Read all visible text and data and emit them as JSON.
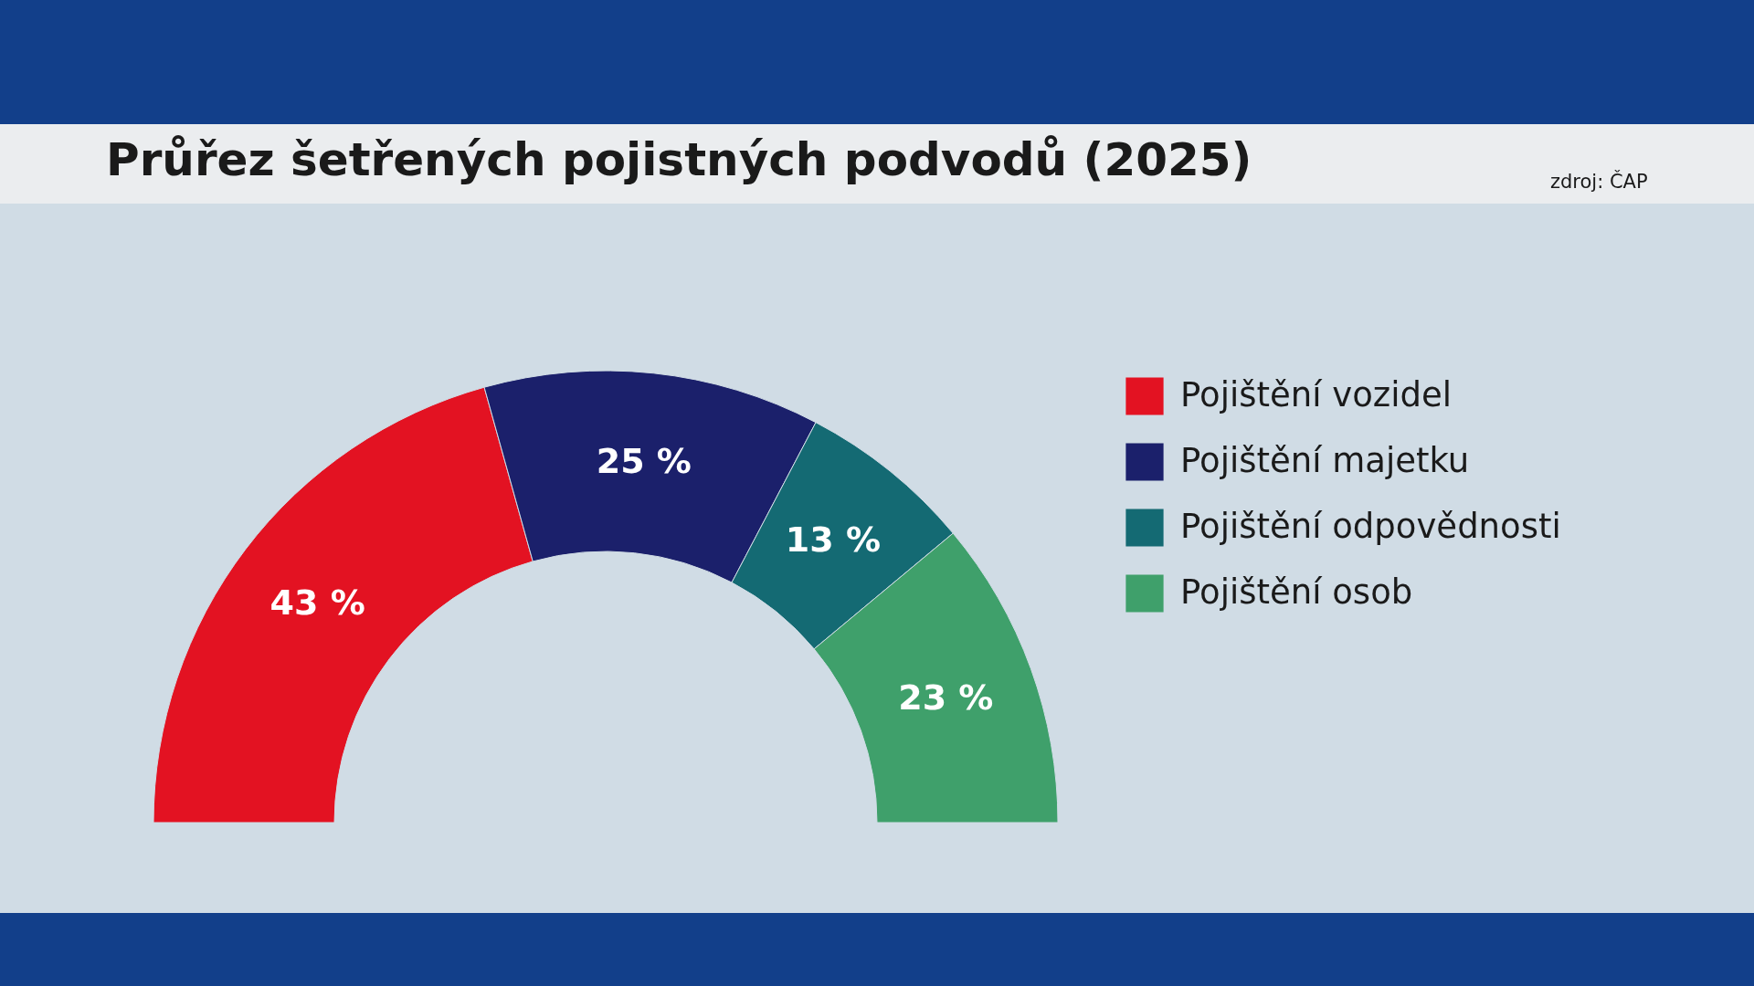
{
  "chart_data": {
    "type": "donut",
    "title": "Průřez šetřených pojistných podvodů (2025)",
    "annotations": [
      "zdroj: ČAP"
    ],
    "categories": [
      "Pojištění vozidel",
      "Pojištění majetku",
      "Pojištění odpovědnosti",
      "Pojištění osob"
    ],
    "values": [
      43,
      25,
      13,
      23
    ],
    "colors": [
      "#e31222",
      "#1b206b",
      "#146a73",
      "#3fa06b"
    ],
    "value_labels": [
      "43 %",
      "25 %",
      "13 %",
      "23 %"
    ],
    "legend": "right"
  }
}
